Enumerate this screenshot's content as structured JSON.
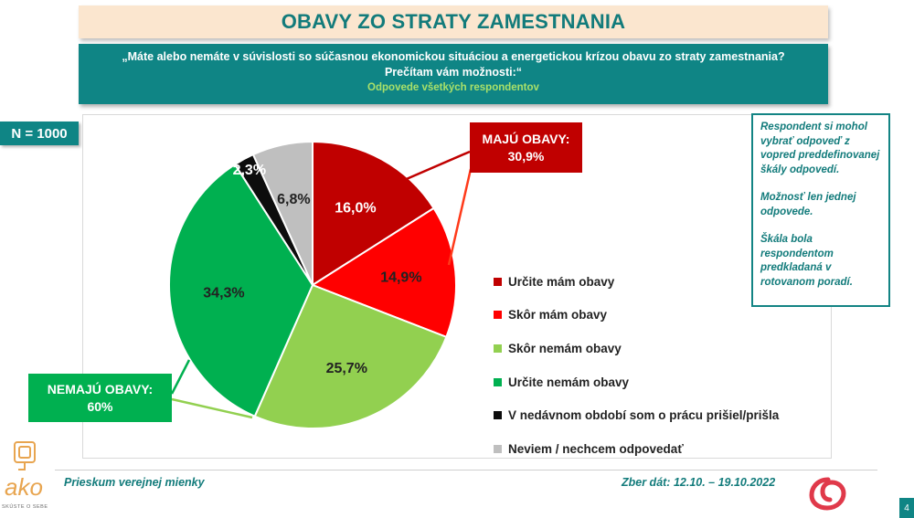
{
  "title": "OBAVY ZO STRATY ZAMESTNANIA",
  "question": "„Máte alebo nemáte v súvislosti so súčasnou ekonomickou situáciou a energetickou krízou obavu zo straty zamestnania? Prečítam vám možnosti:“",
  "subtitle": "Odpovede všetkých respondentov",
  "sample": "N = 1000",
  "note": {
    "p1": "Respondent si mohol vybrať odpoveď z vopred preddefinovanej škály odpovedí.",
    "p2": "Možnosť len jednej odpovede.",
    "p3": "Škála bola respondentom predkladaná v rotovanom poradí."
  },
  "callouts": {
    "have_fears_title": "MAJÚ OBAVY:",
    "have_fears_value": "30,9%",
    "no_fears_title": "NEMAJÚ OBAVY:",
    "no_fears_value": "60%"
  },
  "footer": {
    "left": "Prieskum verejnej mienky",
    "right": "Zber dát: 12.10. – 19.10.2022",
    "page": "4",
    "logo_text": "ako",
    "logo_caption": "SKÚSTE O SEBE"
  },
  "chart_data": {
    "type": "pie",
    "title": "OBAVY ZO STRATY ZAMESTNANIA",
    "start_angle_deg": 0,
    "direction": "clockwise",
    "slices": [
      {
        "label": "Určite mám obavy",
        "value": 16.0,
        "display": "16,0%",
        "color": "#c00000",
        "label_color": "#ffffff"
      },
      {
        "label": "Skôr mám obavy",
        "value": 14.9,
        "display": "14,9%",
        "color": "#ff0000",
        "label_color": "#222222"
      },
      {
        "label": "Skôr nemám obavy",
        "value": 25.7,
        "display": "25,7%",
        "color": "#92d050",
        "label_color": "#222222"
      },
      {
        "label": "Určite nemám obavy",
        "value": 34.3,
        "display": "34,3%",
        "color": "#00b050",
        "label_color": "#222222"
      },
      {
        "label": "V nedávnom období som o prácu prišiel/prišla",
        "value": 2.3,
        "display": "2,3%",
        "color": "#0d0d0d",
        "label_color": "#ffffff"
      },
      {
        "label": "Neviem / nechcem odpovedať",
        "value": 6.8,
        "display": "6,8%",
        "color": "#bfbfbf",
        "label_color": "#222222"
      }
    ],
    "legend_position": "right"
  }
}
